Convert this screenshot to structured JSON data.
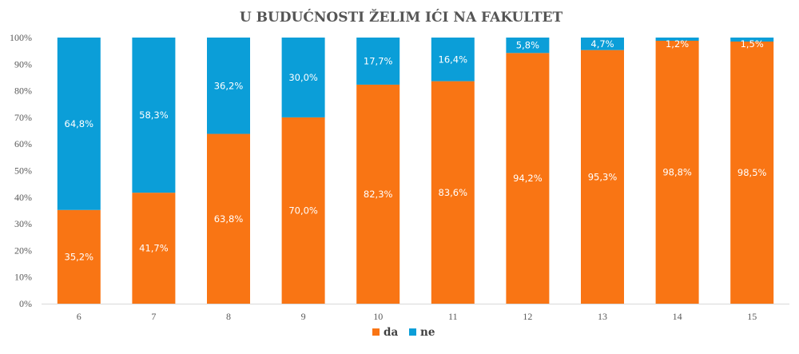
{
  "chart_data": {
    "type": "bar",
    "stacked": true,
    "title": "U BUDUĆNOSTI ŽELIM IĆI NA FAKULTET",
    "categories": [
      "6",
      "7",
      "8",
      "9",
      "10",
      "11",
      "12",
      "13",
      "14",
      "15"
    ],
    "series": [
      {
        "name": "da",
        "color": "#f97514",
        "values": [
          35.2,
          41.7,
          63.8,
          70.0,
          82.3,
          83.6,
          94.2,
          95.3,
          98.8,
          98.5
        ],
        "labels": [
          "35,2%",
          "41,7%",
          "63,8%",
          "70,0%",
          "82,3%",
          "83,6%",
          "94,2%",
          "95,3%",
          "98,8%",
          "98,5%"
        ]
      },
      {
        "name": "ne",
        "color": "#0b9ed8",
        "values": [
          64.8,
          58.3,
          36.2,
          30.0,
          17.7,
          16.4,
          5.8,
          4.7,
          1.2,
          1.5
        ],
        "labels": [
          "64,8%",
          "58,3%",
          "36,2%",
          "30,0%",
          "17,7%",
          "16,4%",
          "5,8%",
          "4,7%",
          "1,2%",
          "1,5%"
        ]
      }
    ],
    "ylim": [
      0,
      100
    ],
    "yticks": [
      "0%",
      "10%",
      "20%",
      "30%",
      "40%",
      "50%",
      "60%",
      "70%",
      "80%",
      "90%",
      "100%"
    ],
    "grid": false,
    "legend_position": "bottom"
  }
}
